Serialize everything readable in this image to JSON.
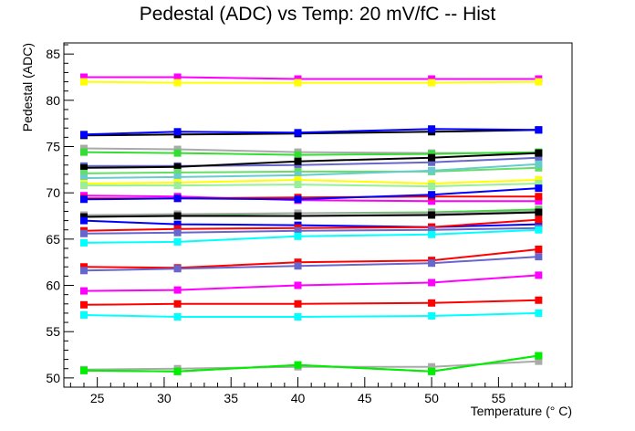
{
  "chart_data": {
    "type": "line",
    "title": "Pedestal (ADC) vs Temp: 20 mV/fC -- Hist",
    "xlabel": "Temperature (° C)",
    "ylabel": "Pedestal (ADC)",
    "xlim": [
      22.5,
      60.5
    ],
    "ylim": [
      49,
      86.2
    ],
    "xticks": [
      25,
      30,
      35,
      40,
      45,
      50,
      55
    ],
    "yticks": [
      50,
      55,
      60,
      65,
      70,
      75,
      80,
      85
    ],
    "grid": false,
    "x": [
      24,
      31,
      40,
      50,
      58
    ],
    "series": [
      {
        "color": "#ff00ff",
        "values": [
          82.5,
          82.5,
          82.3,
          82.3,
          82.3
        ]
      },
      {
        "color": "#ffff00",
        "values": [
          82.0,
          81.9,
          81.9,
          81.9,
          82.0
        ]
      },
      {
        "color": "#000000",
        "values": [
          76.2,
          76.3,
          76.4,
          76.6,
          76.8
        ]
      },
      {
        "color": "#0000ff",
        "values": [
          76.3,
          76.6,
          76.5,
          76.9,
          76.8
        ]
      },
      {
        "color": "#aaaaaa",
        "values": [
          74.8,
          74.7,
          74.4,
          74.3,
          74.3
        ]
      },
      {
        "color": "#33dd33",
        "values": [
          74.4,
          74.3,
          74.1,
          74.2,
          74.4
        ]
      },
      {
        "color": "#6666cc",
        "values": [
          72.9,
          72.9,
          73.0,
          73.3,
          73.8
        ]
      },
      {
        "color": "#000000",
        "values": [
          72.7,
          72.8,
          73.4,
          73.8,
          74.3
        ]
      },
      {
        "color": "#66dd66",
        "values": [
          72.1,
          72.2,
          72.3,
          72.3,
          72.7
        ]
      },
      {
        "color": "#66cccc",
        "values": [
          71.6,
          71.7,
          71.9,
          72.4,
          73.1
        ]
      },
      {
        "color": "#ffff00",
        "values": [
          71.0,
          71.1,
          71.4,
          71.0,
          71.4
        ]
      },
      {
        "color": "#99ee99",
        "values": [
          70.8,
          70.8,
          70.9,
          70.7,
          71.0
        ]
      },
      {
        "color": "#ff00ff",
        "values": [
          69.7,
          69.6,
          69.2,
          69.1,
          69.1
        ]
      },
      {
        "color": "#ff0000",
        "values": [
          69.4,
          69.4,
          69.5,
          69.6,
          69.6
        ]
      },
      {
        "color": "#0000ff",
        "values": [
          69.3,
          69.4,
          69.3,
          69.8,
          70.5
        ]
      },
      {
        "color": "#33dd33",
        "values": [
          67.5,
          67.6,
          67.8,
          67.9,
          68.2
        ]
      },
      {
        "color": "#aaaaaa",
        "values": [
          67.6,
          67.7,
          67.8,
          67.8,
          68.0
        ]
      },
      {
        "color": "#000000",
        "values": [
          67.4,
          67.5,
          67.5,
          67.6,
          67.9
        ]
      },
      {
        "color": "#0000ff",
        "values": [
          67.0,
          66.6,
          66.5,
          66.3,
          66.6
        ]
      },
      {
        "color": "#ff0000",
        "values": [
          65.9,
          66.1,
          66.2,
          66.3,
          67.1
        ]
      },
      {
        "color": "#6666cc",
        "values": [
          65.6,
          65.7,
          65.9,
          66.0,
          66.2
        ]
      },
      {
        "color": "#00ffff",
        "values": [
          64.6,
          64.7,
          65.3,
          65.5,
          66.0
        ]
      },
      {
        "color": "#ff0000",
        "values": [
          62.0,
          61.9,
          62.5,
          62.7,
          63.9
        ]
      },
      {
        "color": "#6666cc",
        "values": [
          61.6,
          61.8,
          62.1,
          62.4,
          63.1
        ]
      },
      {
        "color": "#ff00ff",
        "values": [
          59.4,
          59.5,
          60.0,
          60.3,
          61.1
        ]
      },
      {
        "color": "#ff0000",
        "values": [
          57.9,
          58.0,
          58.0,
          58.1,
          58.4
        ]
      },
      {
        "color": "#00ffff",
        "values": [
          56.8,
          56.6,
          56.6,
          56.7,
          57.0
        ]
      },
      {
        "color": "#aaaaaa",
        "values": [
          50.9,
          51.0,
          51.2,
          51.2,
          51.8
        ]
      },
      {
        "color": "#33dd33",
        "values": [
          50.8,
          50.7,
          51.4,
          50.7,
          52.4
        ]
      },
      {
        "color": "#00ee00",
        "values": [
          50.8,
          50.7,
          51.4,
          50.7,
          52.4
        ]
      }
    ]
  }
}
